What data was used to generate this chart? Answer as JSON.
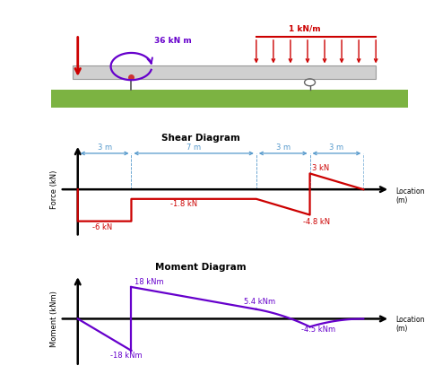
{
  "bg_color": "#ffffff",
  "beam_color": "#cccccc",
  "ground_color": "#7cb342",
  "force_color": "#cc0000",
  "moment_color": "#6600cc",
  "axis_color": "#000000",
  "dim_color": "#5599cc",
  "shear_color": "#cc0000",
  "moment_curve_color": "#6600cc",
  "shear_title": "Shear Diagram",
  "moment_title": "Moment Diagram",
  "force_label": "Force (kN)",
  "moment_label": "Moment (kNm)",
  "location_label": "Location\n(m)",
  "segments": [
    0,
    3,
    10,
    13,
    16
  ],
  "top_labels": {
    "moment_text": "36 kN m",
    "dist_load_text": "1 kN/m"
  },
  "ylim_shear": [
    -9,
    9
  ],
  "ylim_moment": [
    -27,
    27
  ],
  "xlim": [
    -1.5,
    18.5
  ],
  "beam_xlim": [
    -1.5,
    18.5
  ],
  "beam_ylim": [
    -3.0,
    5.5
  ]
}
